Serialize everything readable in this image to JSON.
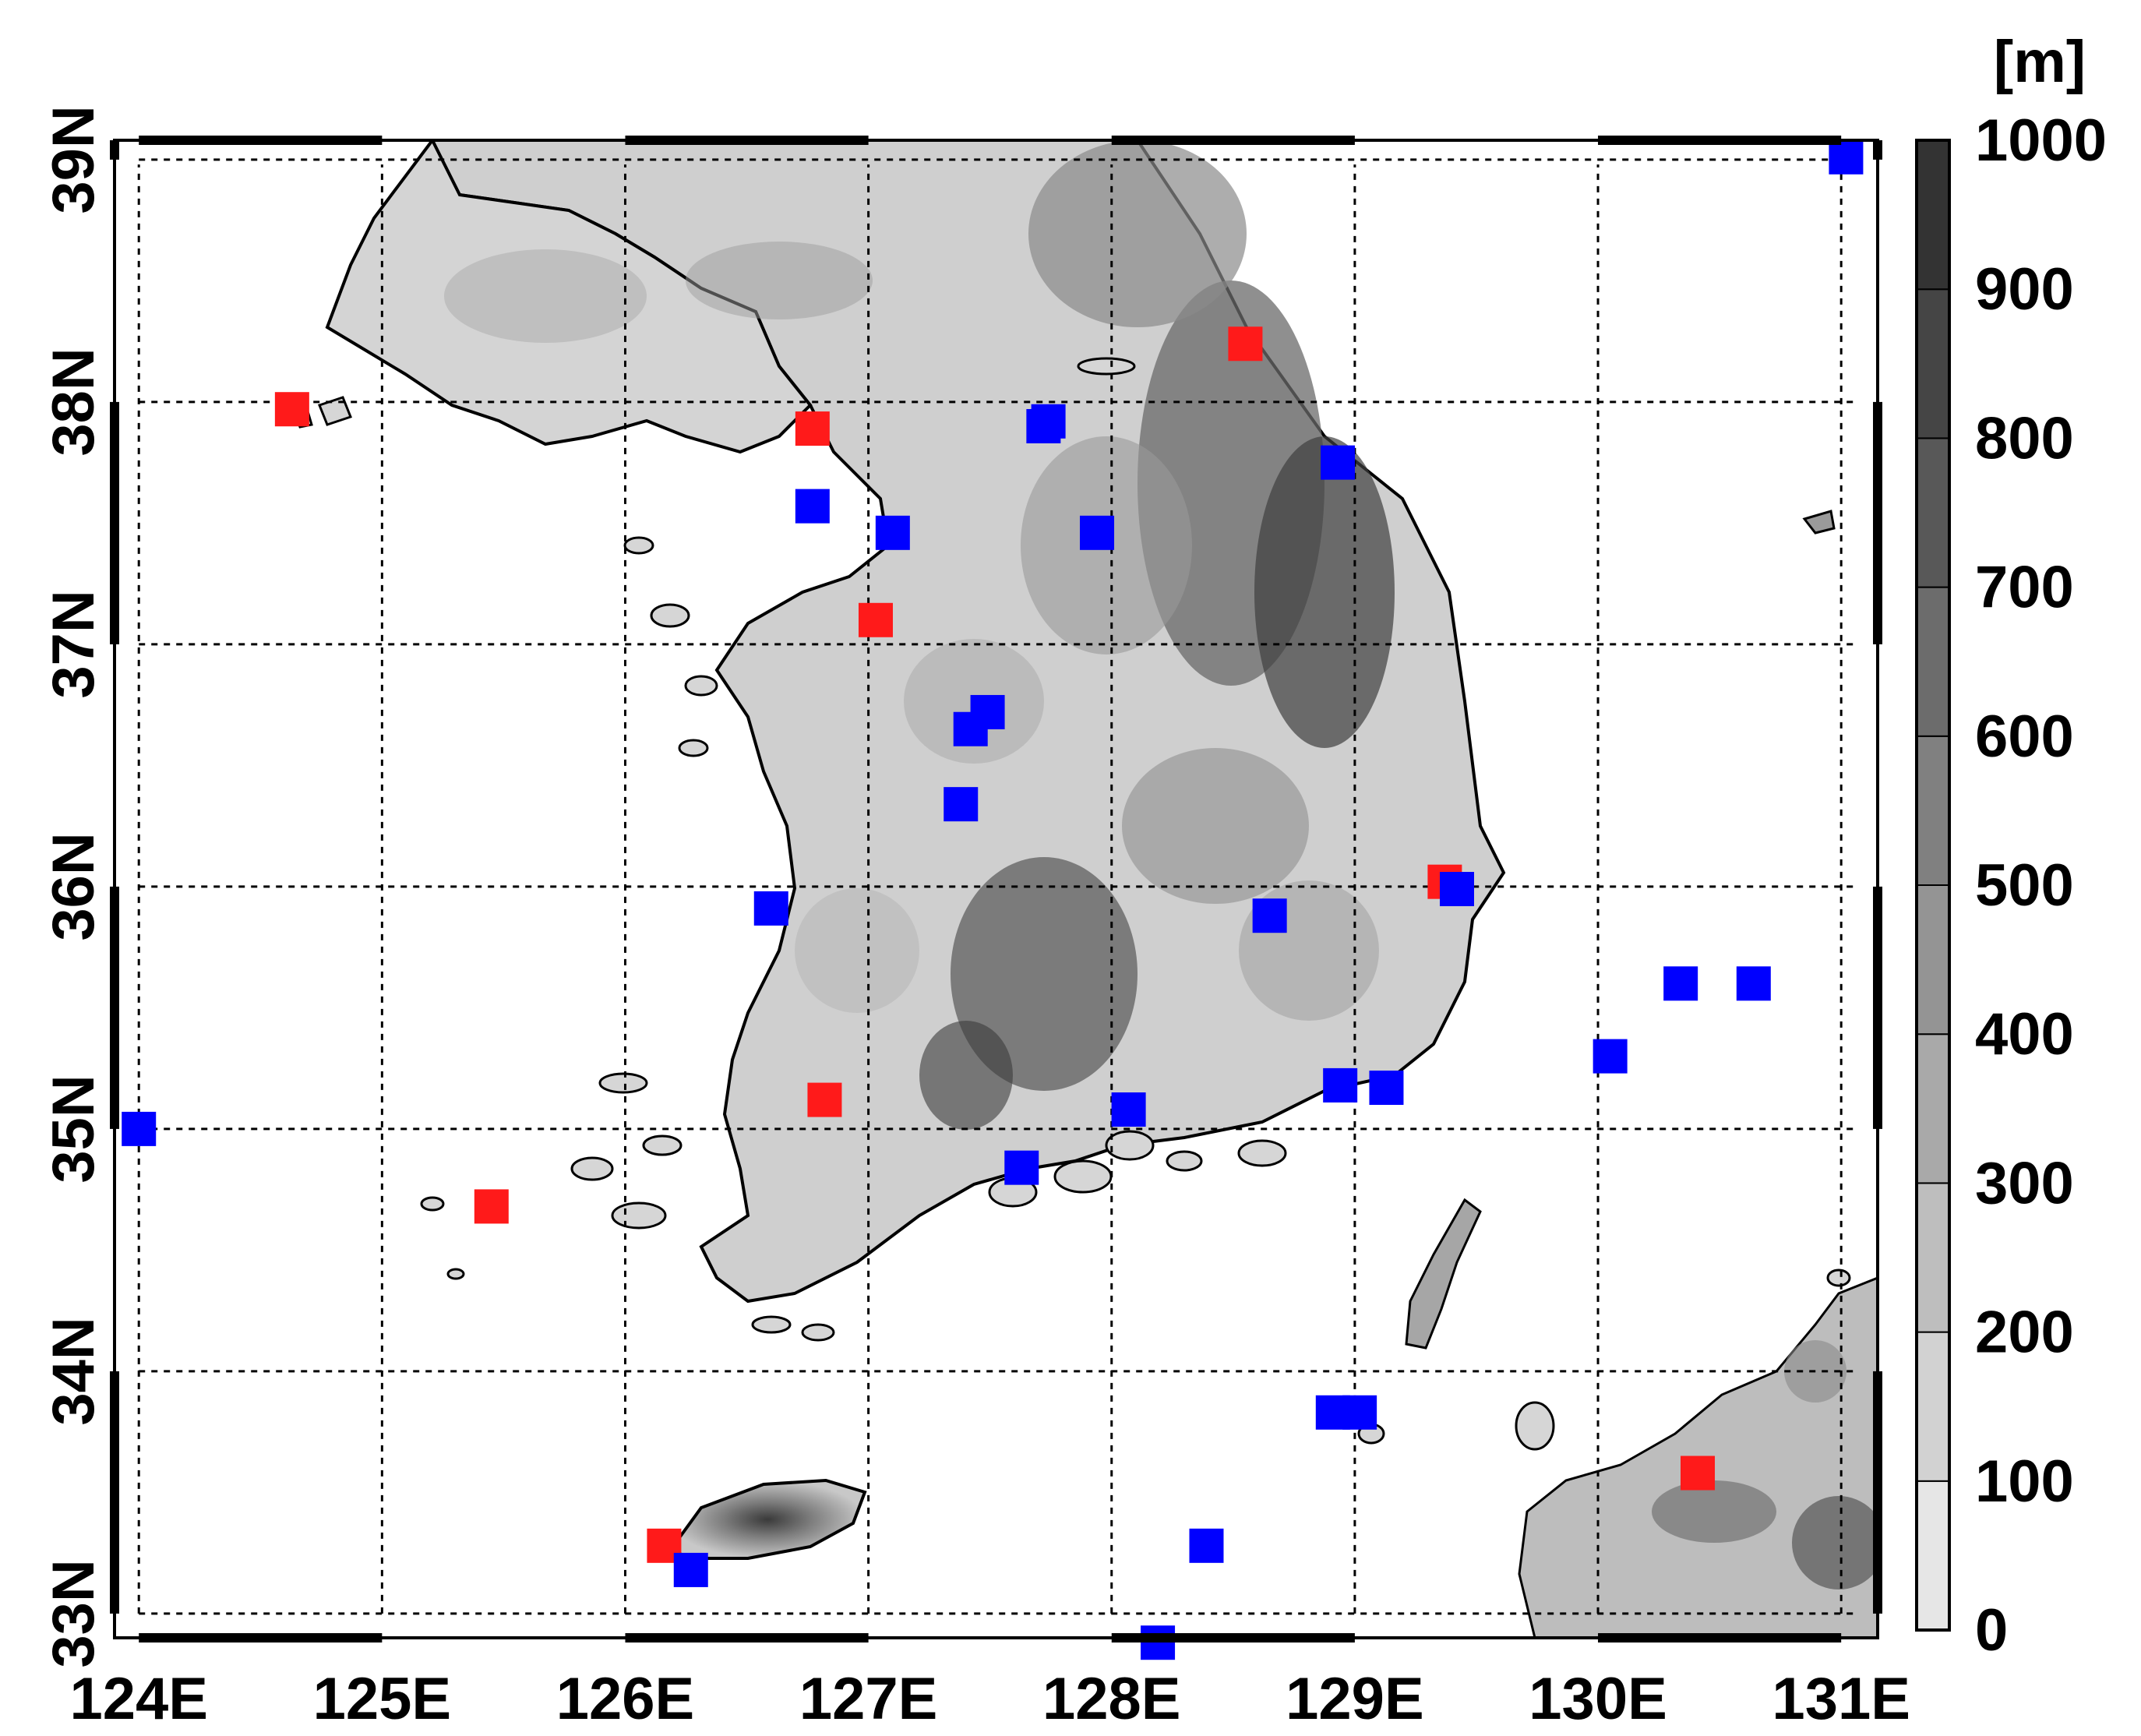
{
  "map": {
    "lon_range": [
      123.9,
      131.15
    ],
    "lat_range": [
      32.9,
      39.08
    ],
    "gridlines": true,
    "lon_ticks": [
      {
        "value": 124,
        "label": "124E"
      },
      {
        "value": 125,
        "label": "125E"
      },
      {
        "value": 126,
        "label": "126E"
      },
      {
        "value": 127,
        "label": "127E"
      },
      {
        "value": 128,
        "label": "128E"
      },
      {
        "value": 129,
        "label": "129E"
      },
      {
        "value": 130,
        "label": "130E"
      },
      {
        "value": 131,
        "label": "131E"
      }
    ],
    "lat_ticks": [
      {
        "value": 33,
        "label": "33N"
      },
      {
        "value": 34,
        "label": "34N"
      },
      {
        "value": 35,
        "label": "35N"
      },
      {
        "value": 36,
        "label": "36N"
      },
      {
        "value": 37,
        "label": "37N"
      },
      {
        "value": 38,
        "label": "38N"
      },
      {
        "value": 39,
        "label": "39N"
      }
    ],
    "colorbar": {
      "unit": "[m]",
      "levels": [
        "0",
        "100",
        "200",
        "300",
        "400",
        "500",
        "600",
        "700",
        "800",
        "900",
        "1000"
      ],
      "colors": [
        "#e6e6e6",
        "#d2d2d2",
        "#bebebe",
        "#a9a9a9",
        "#949494",
        "#808080",
        "#6c6c6c",
        "#585858",
        "#454545",
        "#333333"
      ]
    },
    "marker_colors": {
      "red": "#ff1a1a",
      "blue": "#0000ff"
    },
    "red_stations": [
      {
        "lon": 124.63,
        "lat": 37.97
      },
      {
        "lon": 126.77,
        "lat": 37.89
      },
      {
        "lon": 127.03,
        "lat": 37.1
      },
      {
        "lon": 128.55,
        "lat": 38.24
      },
      {
        "lon": 126.82,
        "lat": 35.12
      },
      {
        "lon": 125.45,
        "lat": 34.68
      },
      {
        "lon": 129.37,
        "lat": 36.02
      },
      {
        "lon": 126.16,
        "lat": 33.28
      },
      {
        "lon": 130.41,
        "lat": 33.58
      }
    ],
    "blue_stations": [
      {
        "lon": 131.02,
        "lat": 39.01
      },
      {
        "lon": 127.72,
        "lat": 37.9
      },
      {
        "lon": 127.74,
        "lat": 37.92
      },
      {
        "lon": 128.93,
        "lat": 37.75
      },
      {
        "lon": 126.77,
        "lat": 37.57
      },
      {
        "lon": 127.1,
        "lat": 37.46
      },
      {
        "lon": 127.94,
        "lat": 37.46
      },
      {
        "lon": 127.49,
        "lat": 36.72
      },
      {
        "lon": 127.42,
        "lat": 36.65
      },
      {
        "lon": 127.38,
        "lat": 36.34
      },
      {
        "lon": 126.6,
        "lat": 35.91
      },
      {
        "lon": 129.42,
        "lat": 35.99
      },
      {
        "lon": 128.65,
        "lat": 35.88
      },
      {
        "lon": 130.34,
        "lat": 35.6
      },
      {
        "lon": 130.64,
        "lat": 35.6
      },
      {
        "lon": 130.05,
        "lat": 35.3
      },
      {
        "lon": 128.94,
        "lat": 35.18
      },
      {
        "lon": 129.13,
        "lat": 35.17
      },
      {
        "lon": 128.07,
        "lat": 35.08
      },
      {
        "lon": 124.0,
        "lat": 35.0
      },
      {
        "lon": 127.63,
        "lat": 34.84
      },
      {
        "lon": 128.91,
        "lat": 33.83
      },
      {
        "lon": 129.02,
        "lat": 33.83
      },
      {
        "lon": 128.39,
        "lat": 33.28
      },
      {
        "lon": 126.27,
        "lat": 33.18
      },
      {
        "lon": 128.19,
        "lat": 32.88
      }
    ]
  }
}
